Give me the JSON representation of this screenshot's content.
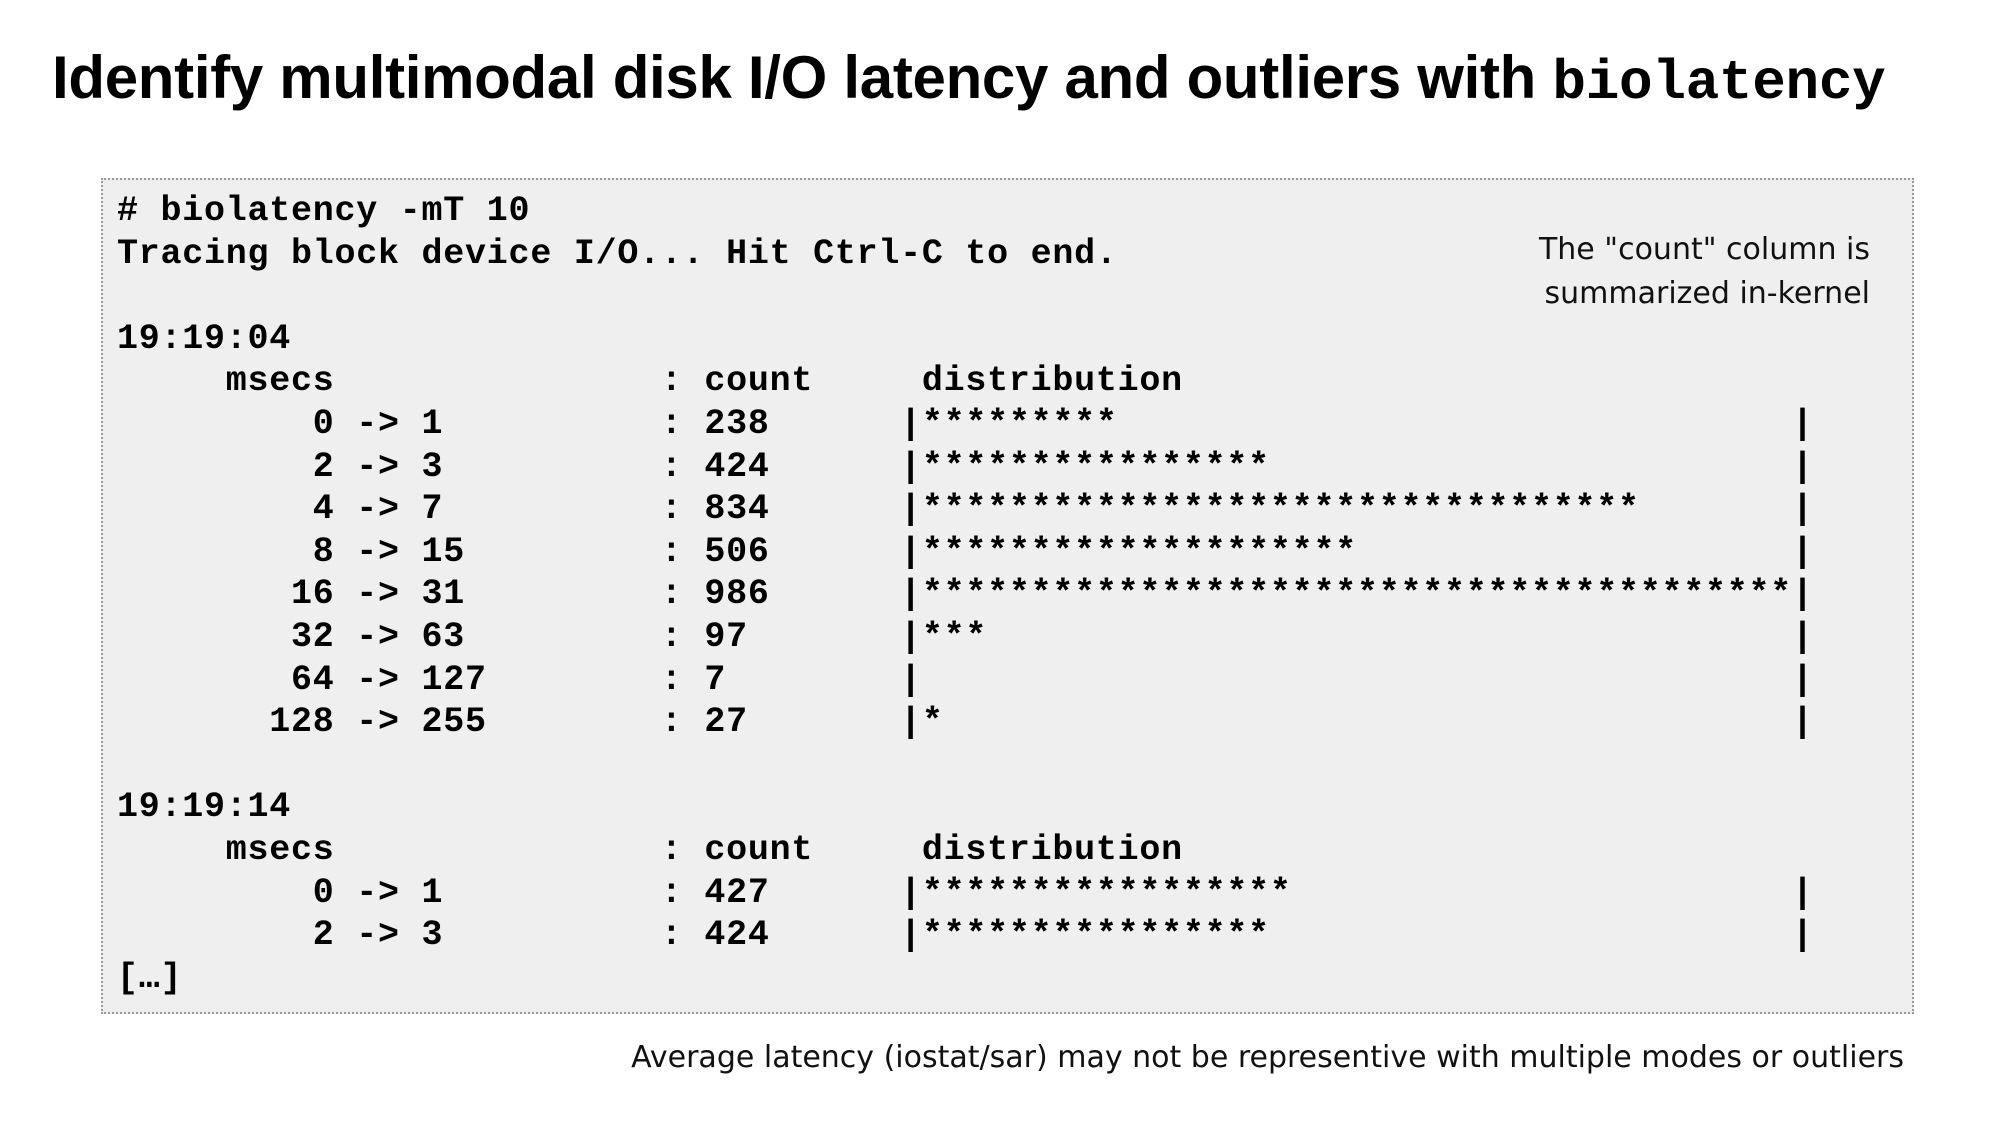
{
  "title": {
    "text": "Identify multimodal disk I/O latency and outliers with ",
    "code": "biolatency"
  },
  "terminal": {
    "lines": [
      "# biolatency -mT 10",
      "Tracing block device I/O... Hit Ctrl-C to end.",
      "",
      "19:19:04",
      "     msecs               : count     distribution",
      "         0 -> 1          : 238      |*********                               |",
      "         2 -> 3          : 424      |****************                        |",
      "         4 -> 7          : 834      |*********************************       |",
      "         8 -> 15         : 506      |********************                    |",
      "        16 -> 31         : 986      |****************************************|",
      "        32 -> 63         : 97       |***                                     |",
      "        64 -> 127        : 7        |                                        |",
      "       128 -> 255        : 27       |*                                       |",
      "",
      "19:19:14",
      "     msecs               : count     distribution",
      "         0 -> 1          : 427      |*****************                       |",
      "         2 -> 3          : 424      |****************                        |",
      "[…]"
    ]
  },
  "annotation": {
    "text": "The \"count\" column is summarized in-kernel"
  },
  "footer": {
    "text": "Average latency (iostat/sar) may not be representive with multiple modes or outliers"
  }
}
